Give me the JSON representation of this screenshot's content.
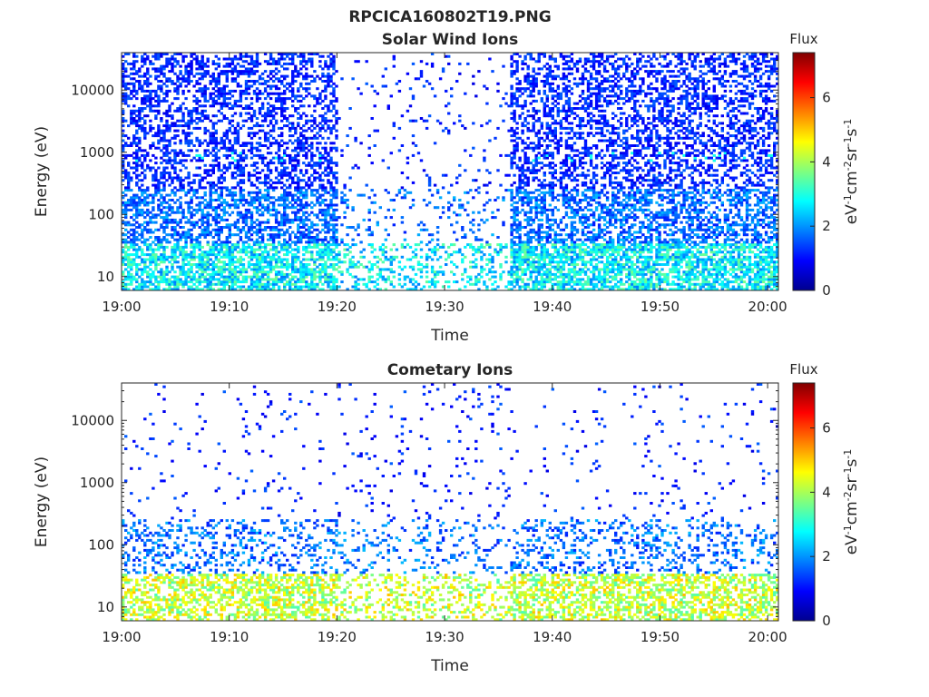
{
  "figure": {
    "title": "RPCICA160802T19.PNG"
  },
  "chart_data": [
    {
      "type": "heatmap",
      "title": "Solar Wind Ions",
      "xlabel": "Time",
      "ylabel": "Energy (eV)",
      "x_ticks": [
        "19:00",
        "19:10",
        "19:20",
        "19:30",
        "19:40",
        "19:50",
        "20:00"
      ],
      "xlim": [
        "19:00",
        "20:01"
      ],
      "y_scale": "log",
      "y_ticks": [
        "10",
        "100",
        "1000",
        "10000"
      ],
      "ylim": [
        6,
        40000
      ],
      "colorbar": {
        "label": "eV-1cm-2sr-1s-1",
        "title": "Flux",
        "ticks": [
          "0",
          "2",
          "4",
          "6"
        ],
        "range": [
          0,
          7.4
        ],
        "colormap": "jet"
      },
      "pattern": "dense",
      "low_energy_level": 2.7,
      "mid_energy_level": 1.0,
      "gap_start": "19:20",
      "gap_end": "19:36",
      "grid": false
    },
    {
      "type": "heatmap",
      "title": "Cometary Ions",
      "xlabel": "Time",
      "ylabel": "Energy (eV)",
      "x_ticks": [
        "19:00",
        "19:10",
        "19:20",
        "19:30",
        "19:40",
        "19:50",
        "20:00"
      ],
      "xlim": [
        "19:00",
        "20:01"
      ],
      "y_scale": "log",
      "y_ticks": [
        "10",
        "100",
        "1000",
        "10000"
      ],
      "ylim": [
        6,
        40000
      ],
      "colorbar": {
        "label": "eV-1cm-2sr-1s-1",
        "title": "Flux",
        "ticks": [
          "0",
          "2",
          "4",
          "6"
        ],
        "range": [
          0,
          7.4
        ],
        "colormap": "jet"
      },
      "pattern": "sparse",
      "low_energy_level": 4.2,
      "mid_energy_level": 1.0,
      "gap_start": "19:20",
      "gap_end": "19:36",
      "grid": false
    }
  ]
}
